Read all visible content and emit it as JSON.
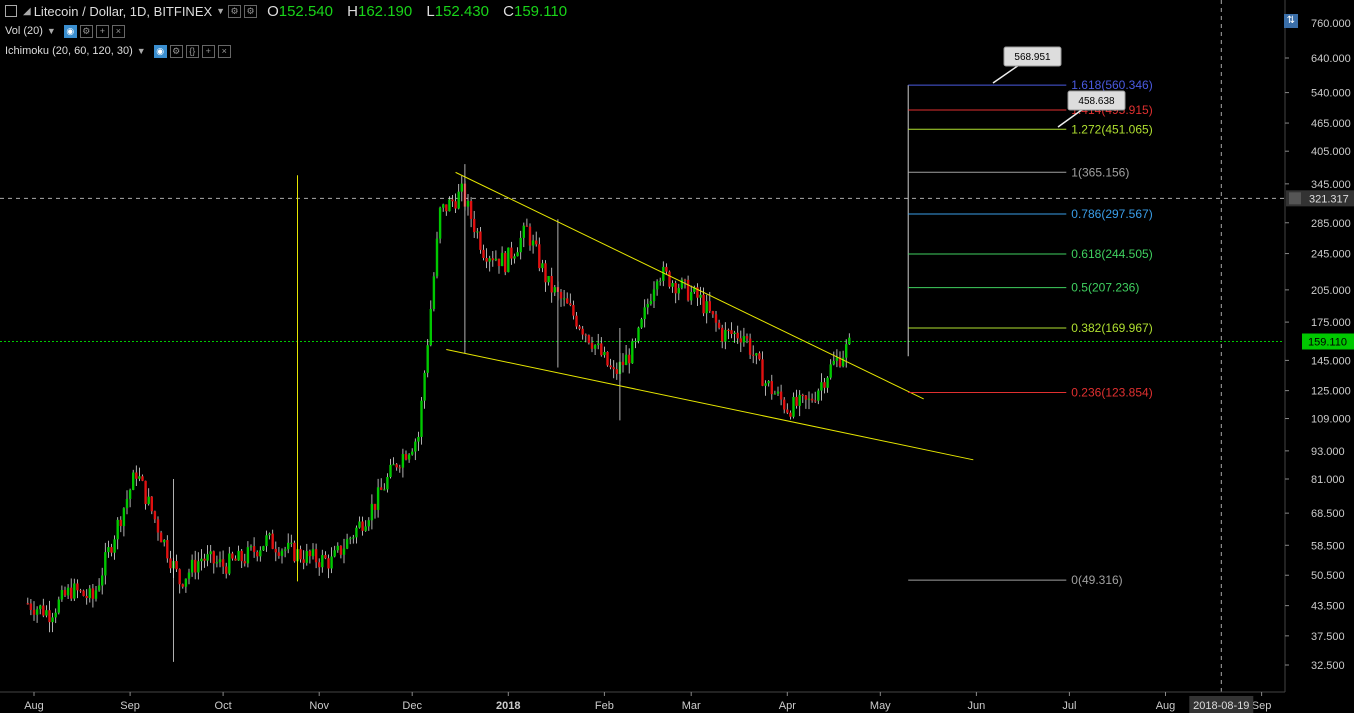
{
  "legend": {
    "symbol": "Litecoin / Dollar, 1D, BITFINEX",
    "open_label": "O",
    "open": "152.540",
    "high_label": "H",
    "high": "162.190",
    "low_label": "L",
    "low": "152.430",
    "close_label": "C",
    "close": "159.110",
    "vol_label": "Vol (20)",
    "ichimoku_label": "Ichimoku (20, 60, 120, 30)"
  },
  "colors": {
    "up": "#00c800",
    "down": "#e01010",
    "accent": "#e6e600",
    "fib_1618": "#4a5ae0",
    "fib_1414": "#e03030",
    "fib_1272": "#b0e030",
    "fib_1": "#a0a0a0",
    "fib_0786": "#3a9ee8",
    "fib_0618": "#40d060",
    "fib_05": "#40d060",
    "fib_0382": "#b0e030",
    "fib_0236": "#e03030",
    "fib_0": "#a0a0a0",
    "last_price": "#00c800"
  },
  "chart_data": {
    "type": "candlestick",
    "y_axis": {
      "scale": "log",
      "ticks": [
        "760.000",
        "640.000",
        "540.000",
        "465.000",
        "405.000",
        "345.000",
        "285.000",
        "245.000",
        "205.000",
        "175.000",
        "145.000",
        "125.000",
        "109.000",
        "93.000",
        "81.000",
        "68.500",
        "58.500",
        "50.500",
        "43.500",
        "37.500",
        "32.500"
      ]
    },
    "x_axis": {
      "ticks": [
        "Aug",
        "Sep",
        "Oct",
        "Nov",
        "Dec",
        "2018",
        "Feb",
        "Mar",
        "Apr",
        "May",
        "Jun",
        "Jul",
        "Aug",
        "Sep"
      ],
      "crosshair_label": "2018-08-19"
    },
    "last_price": "159.110",
    "crosshair_price": "321.317",
    "fib_levels": [
      {
        "ratio": "1.618",
        "price": "560.346"
      },
      {
        "ratio": "1.414",
        "price": "495.915"
      },
      {
        "ratio": "1.272",
        "price": "451.065"
      },
      {
        "ratio": "1",
        "price": "365.156"
      },
      {
        "ratio": "0.786",
        "price": "297.567"
      },
      {
        "ratio": "0.618",
        "price": "244.505"
      },
      {
        "ratio": "0.5",
        "price": "207.236"
      },
      {
        "ratio": "0.382",
        "price": "169.967"
      },
      {
        "ratio": "0.236",
        "price": "123.854"
      },
      {
        "ratio": "0",
        "price": "49.316"
      }
    ],
    "callouts": [
      "568.951",
      "458.638"
    ],
    "series_close_weekly": [
      [
        "2017-07-30",
        44
      ],
      [
        "2017-08-06",
        42
      ],
      [
        "2017-08-13",
        47
      ],
      [
        "2017-08-20",
        45
      ],
      [
        "2017-08-27",
        62
      ],
      [
        "2017-09-03",
        84
      ],
      [
        "2017-09-10",
        64
      ],
      [
        "2017-09-17",
        49
      ],
      [
        "2017-09-24",
        55
      ],
      [
        "2017-10-01",
        53
      ],
      [
        "2017-10-08",
        55
      ],
      [
        "2017-10-15",
        60
      ],
      [
        "2017-10-22",
        57
      ],
      [
        "2017-10-29",
        55
      ],
      [
        "2017-11-05",
        54
      ],
      [
        "2017-11-12",
        62
      ],
      [
        "2017-11-19",
        72
      ],
      [
        "2017-11-26",
        88
      ],
      [
        "2017-12-03",
        100
      ],
      [
        "2017-12-10",
        300
      ],
      [
        "2017-12-17",
        330
      ],
      [
        "2017-12-24",
        250
      ],
      [
        "2017-12-31",
        235
      ],
      [
        "2018-01-07",
        275
      ],
      [
        "2018-01-14",
        210
      ],
      [
        "2018-01-21",
        185
      ],
      [
        "2018-01-28",
        160
      ],
      [
        "2018-02-04",
        135
      ],
      [
        "2018-02-11",
        155
      ],
      [
        "2018-02-18",
        225
      ],
      [
        "2018-02-25",
        210
      ],
      [
        "2018-03-04",
        195
      ],
      [
        "2018-03-11",
        165
      ],
      [
        "2018-03-18",
        165
      ],
      [
        "2018-03-25",
        130
      ],
      [
        "2018-04-01",
        115
      ],
      [
        "2018-04-08",
        118
      ],
      [
        "2018-04-15",
        140
      ],
      [
        "2018-04-22",
        159.11
      ]
    ]
  }
}
